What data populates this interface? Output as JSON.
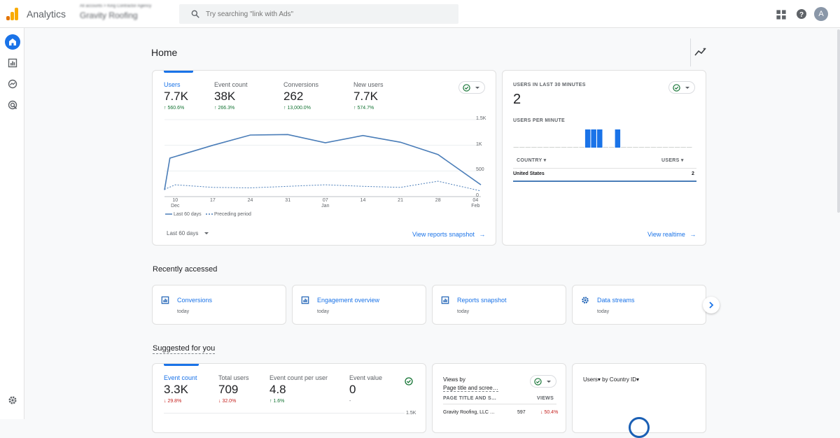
{
  "app": {
    "name": "Analytics"
  },
  "account": {
    "path": "All accounts > King Contractor Agency",
    "property": "Gravity Roofing"
  },
  "search": {
    "placeholder": "Try searching \"link with Ads\""
  },
  "user": {
    "avatar_letter": "A"
  },
  "page": {
    "title": "Home"
  },
  "overview": {
    "metrics": [
      {
        "label": "Users",
        "value": "7.7K",
        "change": "↑ 560.6%"
      },
      {
        "label": "Event count",
        "value": "38K",
        "change": "↑ 266.3%"
      },
      {
        "label": "Conversions",
        "value": "262",
        "change": "↑ 13,000.0%"
      },
      {
        "label": "New users",
        "value": "7.7K",
        "change": "↑ 574.7%"
      }
    ],
    "date_range": "Last 60 days",
    "link": "View reports snapshot"
  },
  "chart_data": {
    "type": "line",
    "x_ticks": [
      {
        "day": "10",
        "month": "Dec"
      },
      {
        "day": "17",
        "month": ""
      },
      {
        "day": "24",
        "month": ""
      },
      {
        "day": "31",
        "month": ""
      },
      {
        "day": "07",
        "month": "Jan"
      },
      {
        "day": "14",
        "month": ""
      },
      {
        "day": "21",
        "month": ""
      },
      {
        "day": "28",
        "month": ""
      },
      {
        "day": "04",
        "month": "Feb"
      }
    ],
    "y_ticks": [
      "1.5K",
      "1K",
      "500",
      "0"
    ],
    "ylim": [
      0,
      1500
    ],
    "series": [
      {
        "name": "Last 60 days",
        "style": "solid",
        "color": "#4a7db8",
        "x": [
          "Dec 8",
          "Dec 9",
          "Dec 17",
          "Dec 24",
          "Dec 31",
          "Jan 7",
          "Jan 14",
          "Jan 21",
          "Jan 28",
          "Feb 5"
        ],
        "values": [
          130,
          750,
          1000,
          1200,
          1210,
          1050,
          1190,
          1060,
          820,
          230
        ]
      },
      {
        "name": "Preceding period",
        "style": "dashed",
        "color": "#4a7db8",
        "x": [
          "Dec 8",
          "Dec 10",
          "Dec 17",
          "Dec 24",
          "Dec 31",
          "Jan 7",
          "Jan 14",
          "Jan 21",
          "Jan 28",
          "Feb 5"
        ],
        "values": [
          140,
          230,
          180,
          170,
          200,
          230,
          200,
          180,
          300,
          110
        ]
      }
    ]
  },
  "realtime": {
    "title": "USERS IN LAST 30 MINUTES",
    "value": "2",
    "sub_title": "USERS PER MINUTE",
    "bars": [
      0,
      0,
      0,
      0,
      0,
      0,
      0,
      0,
      0,
      0,
      0,
      0,
      1,
      1,
      1,
      0,
      0,
      1,
      0,
      0,
      0,
      0,
      0,
      0,
      0,
      0,
      0,
      0,
      0,
      0
    ],
    "col_country": "COUNTRY",
    "col_users": "USERS",
    "rows": [
      {
        "country": "United States",
        "users": "2"
      }
    ],
    "link": "View realtime"
  },
  "recently_accessed": {
    "title": "Recently accessed",
    "items": [
      {
        "name": "Conversions",
        "when": "today",
        "icon": "bar-chart-icon"
      },
      {
        "name": "Engagement overview",
        "when": "today",
        "icon": "bar-chart-icon"
      },
      {
        "name": "Reports snapshot",
        "when": "today",
        "icon": "bar-chart-icon"
      },
      {
        "name": "Data streams",
        "when": "today",
        "icon": "gear-icon"
      }
    ]
  },
  "suggested": {
    "title": "Suggested for you",
    "card1": {
      "metrics": [
        {
          "label": "Event count",
          "value": "3.3K",
          "change": "↓ 29.8%",
          "dir": "down"
        },
        {
          "label": "Total users",
          "value": "709",
          "change": "↓ 32.0%",
          "dir": "down"
        },
        {
          "label": "Event count per user",
          "value": "4.8",
          "change": "↑ 1.6%",
          "dir": "up"
        },
        {
          "label": "Event value",
          "value": "0",
          "change": "-",
          "dir": "none"
        }
      ],
      "y_top": "1.5K"
    },
    "card2": {
      "title_line1": "Views by",
      "title_line2": "Page title and scree…",
      "col1": "PAGE TITLE AND S…",
      "col2": "VIEWS",
      "row": {
        "name": "Gravity Roofing, LLC …",
        "views": "597",
        "change": "↓ 50.4%"
      }
    },
    "card3": {
      "title": "Users▾ by Country ID▾"
    }
  },
  "colors": {
    "accent": "#1a73e8",
    "line": "#4a7db8",
    "up": "#137333",
    "down": "#c5221f"
  }
}
